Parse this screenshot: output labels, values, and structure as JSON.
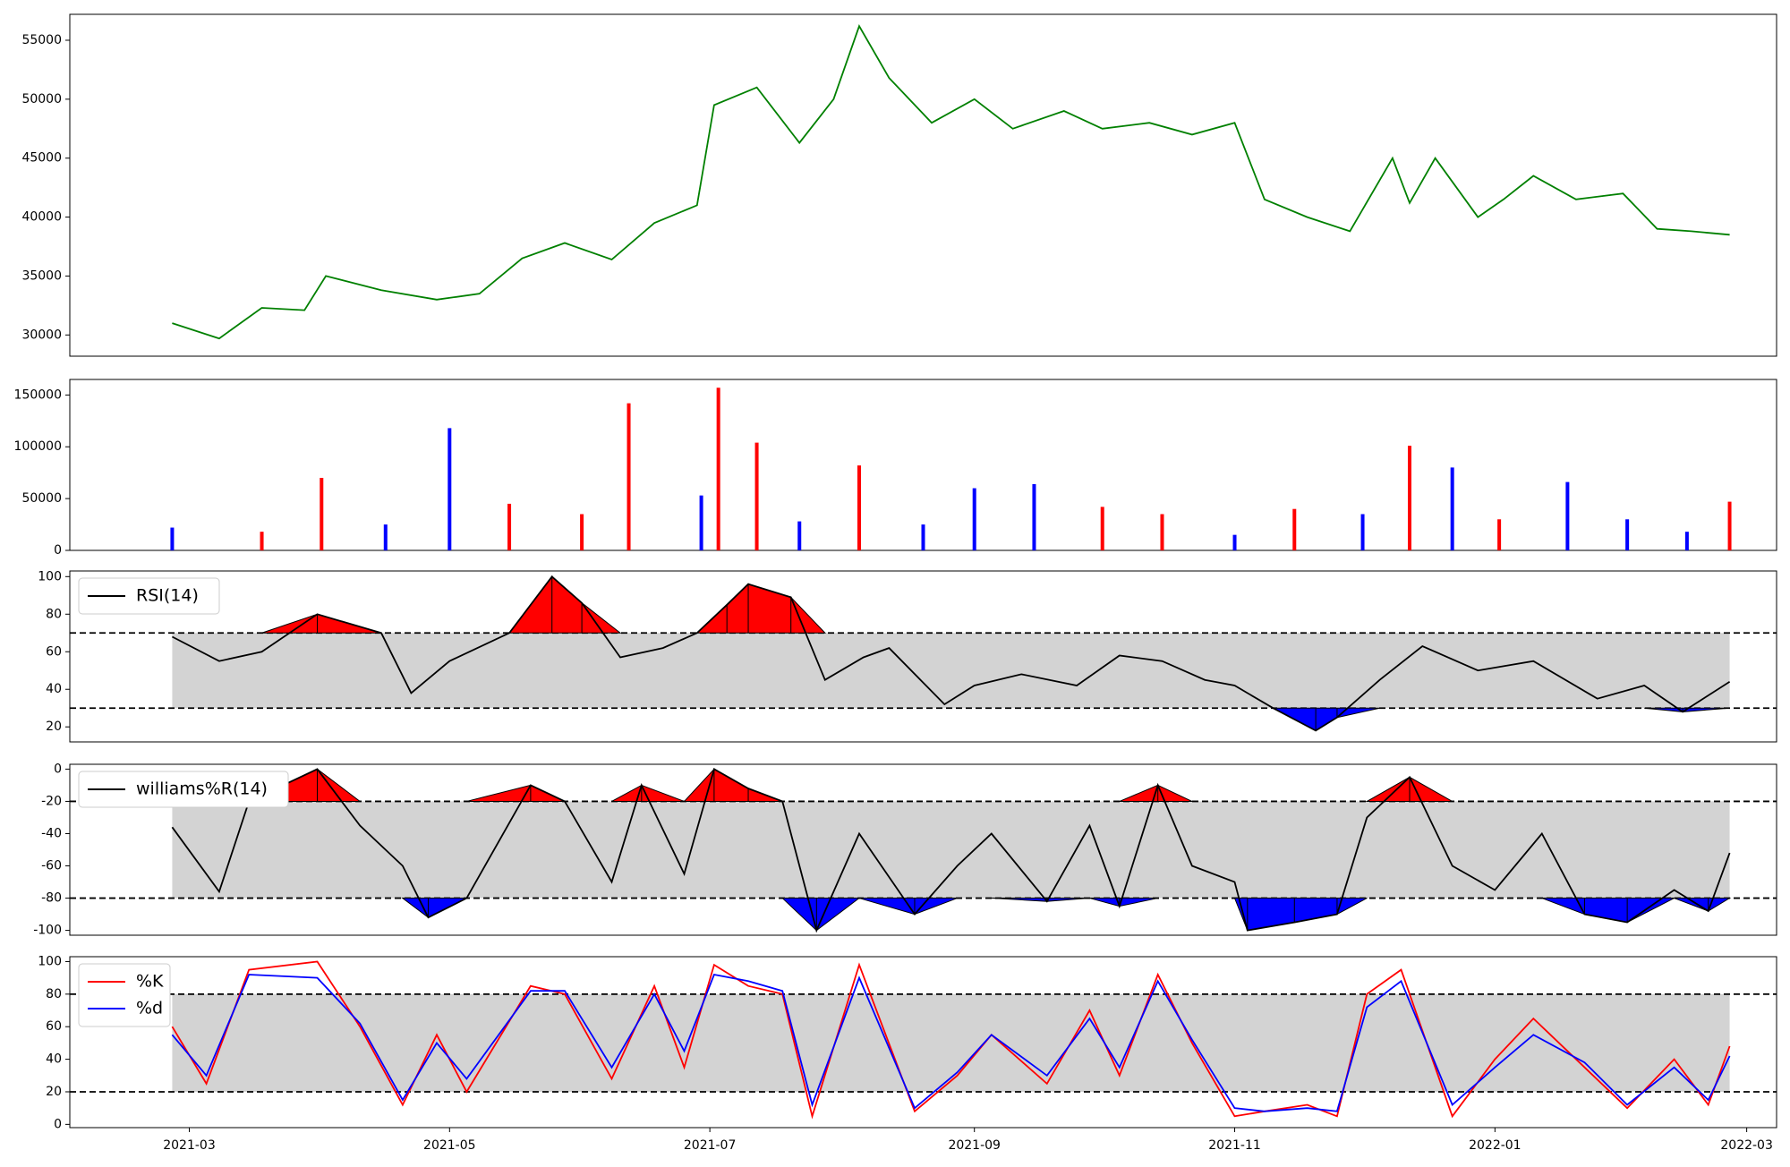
{
  "chart_data": [
    {
      "type": "line",
      "title": "",
      "ylim": [
        28200,
        57200
      ],
      "yticks": [
        30000,
        35000,
        40000,
        45000,
        50000,
        55000
      ],
      "color": "#008000",
      "x": [
        "2021-02-25",
        "2021-03-08",
        "2021-03-18",
        "2021-03-28",
        "2021-04-02",
        "2021-04-15",
        "2021-04-28",
        "2021-05-08",
        "2021-05-18",
        "2021-05-28",
        "2021-06-08",
        "2021-06-18",
        "2021-06-28",
        "2021-07-02",
        "2021-07-12",
        "2021-07-22",
        "2021-07-30",
        "2021-08-05",
        "2021-08-12",
        "2021-08-22",
        "2021-09-01",
        "2021-09-10",
        "2021-09-22",
        "2021-10-01",
        "2021-10-12",
        "2021-10-22",
        "2021-11-01",
        "2021-11-08",
        "2021-11-18",
        "2021-11-28",
        "2021-12-08",
        "2021-12-12",
        "2021-12-18",
        "2021-12-28",
        "2022-01-03",
        "2022-01-10",
        "2022-01-20",
        "2022-01-31",
        "2022-02-08",
        "2022-02-16",
        "2022-02-25"
      ],
      "values": [
        31000,
        29700,
        32300,
        32100,
        35000,
        33800,
        33000,
        33500,
        36500,
        37800,
        36400,
        39500,
        41000,
        49500,
        51000,
        46300,
        50000,
        56200,
        51800,
        48000,
        50000,
        47500,
        49000,
        47500,
        48000,
        47000,
        48000,
        41500,
        40000,
        38800,
        45000,
        41200,
        45000,
        40000,
        41500,
        43500,
        41500,
        42000,
        39000,
        38800,
        38500
      ]
    },
    {
      "type": "bar",
      "ylim": [
        0,
        165000
      ],
      "yticks": [
        0,
        50000,
        100000,
        150000
      ],
      "note_colors": {
        "up": "#ff0000",
        "down": "#0000ff",
        "flat": "#000000"
      },
      "x": [
        "2021-02-25",
        "2021-03-18",
        "2021-04-01",
        "2021-04-16",
        "2021-05-01",
        "2021-05-15",
        "2021-06-01",
        "2021-06-12",
        "2021-06-29",
        "2021-07-03",
        "2021-07-12",
        "2021-07-22",
        "2021-08-05",
        "2021-08-20",
        "2021-09-01",
        "2021-09-15",
        "2021-10-01",
        "2021-10-15",
        "2021-11-01",
        "2021-11-15",
        "2021-12-01",
        "2021-12-12",
        "2021-12-22",
        "2022-01-02",
        "2022-01-18",
        "2022-02-01",
        "2022-02-15",
        "2022-02-25"
      ],
      "values": [
        22000,
        18000,
        70000,
        25000,
        118000,
        45000,
        35000,
        142000,
        53000,
        157000,
        104000,
        28000,
        82000,
        25000,
        60000,
        64000,
        42000,
        35000,
        15000,
        40000,
        35000,
        101000,
        80000,
        30000,
        66000,
        30000,
        18000,
        47000
      ],
      "directions": [
        "down",
        "red",
        "red",
        "blue",
        "down",
        "red",
        "red",
        "up",
        "blue",
        "up",
        "up",
        "down",
        "up",
        "down",
        "down",
        "down",
        "up",
        "up",
        "down",
        "up",
        "down",
        "up",
        "down",
        "up",
        "down",
        "down",
        "down",
        "up"
      ]
    },
    {
      "type": "line",
      "legend": [
        "RSI(14)"
      ],
      "ylim": [
        12,
        103
      ],
      "yticks": [
        20,
        40,
        60,
        80,
        100
      ],
      "hlines": [
        70,
        30
      ],
      "band": [
        30,
        70
      ],
      "x": [
        "2021-02-25",
        "2021-03-08",
        "2021-03-18",
        "2021-03-31",
        "2021-04-15",
        "2021-04-22",
        "2021-05-01",
        "2021-05-15",
        "2021-05-25",
        "2021-06-01",
        "2021-06-10",
        "2021-06-20",
        "2021-06-28",
        "2021-07-05",
        "2021-07-10",
        "2021-07-20",
        "2021-07-28",
        "2021-08-06",
        "2021-08-12",
        "2021-08-25",
        "2021-09-01",
        "2021-09-12",
        "2021-09-25",
        "2021-10-05",
        "2021-10-15",
        "2021-10-25",
        "2021-11-01",
        "2021-11-10",
        "2021-11-20",
        "2021-11-25",
        "2021-12-05",
        "2021-12-15",
        "2021-12-28",
        "2022-01-10",
        "2022-01-25",
        "2022-02-05",
        "2022-02-14",
        "2022-02-25"
      ],
      "values": [
        68,
        55,
        60,
        80,
        70,
        38,
        55,
        70,
        100,
        86,
        57,
        62,
        70,
        85,
        96,
        89,
        45,
        57,
        62,
        32,
        42,
        48,
        42,
        58,
        55,
        45,
        42,
        30,
        18,
        25,
        45,
        63,
        50,
        55,
        35,
        42,
        28,
        44
      ]
    },
    {
      "type": "line",
      "legend": [
        "williams%R(14)"
      ],
      "ylim": [
        -103,
        3
      ],
      "yticks": [
        -100,
        -80,
        -60,
        -40,
        -20,
        0
      ],
      "hlines": [
        -20,
        -80
      ],
      "band": [
        -80,
        -20
      ],
      "x": [
        "2021-02-25",
        "2021-03-08",
        "2021-03-15",
        "2021-03-31",
        "2021-04-10",
        "2021-04-20",
        "2021-04-26",
        "2021-05-05",
        "2021-05-20",
        "2021-05-28",
        "2021-06-08",
        "2021-06-15",
        "2021-06-25",
        "2021-07-02",
        "2021-07-10",
        "2021-07-18",
        "2021-07-26",
        "2021-08-05",
        "2021-08-18",
        "2021-08-28",
        "2021-09-05",
        "2021-09-18",
        "2021-09-28",
        "2021-10-05",
        "2021-10-14",
        "2021-10-22",
        "2021-11-01",
        "2021-11-04",
        "2021-11-15",
        "2021-11-25",
        "2021-12-02",
        "2021-12-12",
        "2021-12-22",
        "2022-01-01",
        "2022-01-12",
        "2022-01-22",
        "2022-02-01",
        "2022-02-12",
        "2022-02-20",
        "2022-02-25"
      ],
      "values": [
        -36,
        -76,
        -20,
        0,
        -35,
        -60,
        -92,
        -80,
        -10,
        -20,
        -70,
        -10,
        -65,
        0,
        -12,
        -20,
        -100,
        -40,
        -90,
        -60,
        -40,
        -82,
        -35,
        -85,
        -10,
        -60,
        -70,
        -100,
        -95,
        -90,
        -30,
        -5,
        -60,
        -75,
        -40,
        -90,
        -95,
        -75,
        -88,
        -52
      ]
    },
    {
      "type": "line",
      "legend": [
        "%K",
        "%d"
      ],
      "ylim": [
        -2,
        103
      ],
      "yticks": [
        0,
        20,
        40,
        60,
        80,
        100
      ],
      "hlines": [
        80,
        20
      ],
      "band": [
        20,
        80
      ],
      "x": [
        "2021-02-25",
        "2021-03-05",
        "2021-03-15",
        "2021-03-31",
        "2021-04-10",
        "2021-04-20",
        "2021-04-28",
        "2021-05-05",
        "2021-05-20",
        "2021-05-28",
        "2021-06-08",
        "2021-06-18",
        "2021-06-25",
        "2021-07-02",
        "2021-07-10",
        "2021-07-18",
        "2021-07-25",
        "2021-08-05",
        "2021-08-18",
        "2021-08-28",
        "2021-09-05",
        "2021-09-18",
        "2021-09-28",
        "2021-10-05",
        "2021-10-14",
        "2021-10-22",
        "2021-11-01",
        "2021-11-08",
        "2021-11-18",
        "2021-11-25",
        "2021-12-02",
        "2021-12-10",
        "2021-12-22",
        "2022-01-01",
        "2022-01-10",
        "2022-01-22",
        "2022-02-01",
        "2022-02-12",
        "2022-02-20",
        "2022-02-25"
      ],
      "k_values": [
        60,
        25,
        95,
        100,
        60,
        12,
        55,
        20,
        85,
        80,
        28,
        85,
        35,
        98,
        85,
        80,
        5,
        98,
        8,
        30,
        55,
        25,
        70,
        30,
        92,
        50,
        5,
        8,
        12,
        5,
        80,
        95,
        5,
        40,
        65,
        35,
        10,
        40,
        12,
        48
      ],
      "d_values": [
        55,
        30,
        92,
        90,
        62,
        15,
        50,
        28,
        82,
        82,
        35,
        80,
        45,
        92,
        88,
        82,
        12,
        90,
        10,
        32,
        55,
        30,
        65,
        35,
        88,
        52,
        10,
        8,
        10,
        8,
        72,
        88,
        12,
        35,
        55,
        38,
        12,
        35,
        15,
        42
      ]
    }
  ],
  "x_axis": {
    "ticks": [
      "2021-03",
      "2021-05",
      "2021-07",
      "2021-09",
      "2021-11",
      "2022-01",
      "2022-03"
    ]
  }
}
